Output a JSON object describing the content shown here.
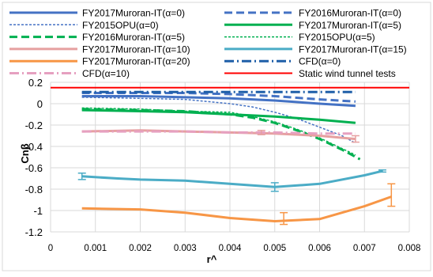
{
  "chart_data": {
    "type": "line",
    "title": "",
    "xlabel": "r^",
    "ylabel": "Cnβ",
    "xlim": [
      0,
      0.008
    ],
    "ylim": [
      -1.2,
      0.2
    ],
    "xticks": [
      0,
      0.001,
      0.002,
      0.003,
      0.004,
      0.005,
      0.006,
      0.007,
      0.008
    ],
    "xtick_labels": [
      "0",
      "0.001",
      "0.002",
      "0.003",
      "0.004",
      "0.005",
      "0.006",
      "0.007",
      "0.008"
    ],
    "yticks": [
      0.2,
      0,
      -0.2,
      -0.4,
      -0.6,
      -0.8,
      -1,
      -1.2
    ],
    "ytick_labels": [
      "0.2",
      "0",
      "-0.2",
      "-0.4",
      "-0.6",
      "-0.8",
      "-1",
      "-1.2"
    ],
    "grid": true,
    "legend_position": "top",
    "series": [
      {
        "name": "FY2017Muroran-IT(α=0)",
        "color": "#4472c4",
        "dash": "",
        "width": 3,
        "x": [
          0.0007,
          0.002,
          0.003,
          0.004,
          0.005,
          0.006,
          0.0068
        ],
        "y": [
          0.07,
          0.07,
          0.06,
          0.05,
          0.03,
          0.0,
          -0.02
        ]
      },
      {
        "name": "FY2016Muroran-IT(α=0)",
        "color": "#4472c4",
        "dash": "10,5",
        "width": 3,
        "x": [
          0.0007,
          0.002,
          0.003,
          0.004,
          0.005,
          0.006,
          0.0068
        ],
        "y": [
          0.1,
          0.1,
          0.1,
          0.09,
          0.07,
          0.04,
          0.02
        ]
      },
      {
        "name": "FY2015OPU(α=0)",
        "color": "#4472c4",
        "dash": "3,2",
        "width": 1.5,
        "x": [
          0.0007,
          0.002,
          0.003,
          0.004,
          0.0045,
          0.005,
          0.0055,
          0.006,
          0.0065,
          0.0068
        ],
        "y": [
          0.06,
          0.05,
          0.04,
          0.0,
          -0.03,
          -0.08,
          -0.14,
          -0.22,
          -0.3,
          -0.37
        ]
      },
      {
        "name": "FY2017Muroran-IT(α=5)",
        "color": "#00b050",
        "dash": "",
        "width": 3,
        "x": [
          0.0007,
          0.002,
          0.003,
          0.004,
          0.005,
          0.006,
          0.0068
        ],
        "y": [
          -0.06,
          -0.07,
          -0.08,
          -0.1,
          -0.12,
          -0.15,
          -0.18
        ]
      },
      {
        "name": "FY2016Muroran-IT(α=5)",
        "color": "#00b050",
        "dash": "10,5",
        "width": 3,
        "x": [
          0.0007,
          0.002,
          0.003,
          0.004,
          0.0045,
          0.005,
          0.0055,
          0.006,
          0.0065,
          0.0069
        ],
        "y": [
          -0.05,
          -0.06,
          -0.07,
          -0.1,
          -0.13,
          -0.18,
          -0.25,
          -0.33,
          -0.43,
          -0.52
        ]
      },
      {
        "name": "FY2015OPU(α=5)",
        "color": "#00b050",
        "dash": "3,2",
        "width": 1.5,
        "x": [
          0.0007,
          0.002,
          0.003,
          0.004,
          0.0045,
          0.005,
          0.0055,
          0.006,
          0.0065,
          0.0068
        ],
        "y": [
          -0.04,
          -0.05,
          -0.07,
          -0.08,
          -0.12,
          -0.17,
          -0.24,
          -0.32,
          -0.42,
          -0.48
        ]
      },
      {
        "name": "FY2017Muroran-IT(α=10)",
        "color": "#e6a0a0",
        "dash": "",
        "width": 3,
        "x": [
          0.0007,
          0.002,
          0.003,
          0.004,
          0.005,
          0.006,
          0.0068
        ],
        "y": [
          -0.26,
          -0.25,
          -0.26,
          -0.27,
          -0.28,
          -0.3,
          -0.33
        ]
      },
      {
        "name": "FY2017Muroran-IT(α=15)",
        "color": "#4bacc6",
        "dash": "",
        "width": 3,
        "x": [
          0.0007,
          0.0015,
          0.002,
          0.003,
          0.004,
          0.005,
          0.006,
          0.007,
          0.0074
        ],
        "y": [
          -0.68,
          -0.7,
          -0.71,
          -0.72,
          -0.75,
          -0.78,
          -0.75,
          -0.67,
          -0.63
        ]
      },
      {
        "name": "FY2017Muroran-IT(α=20)",
        "color": "#f79646",
        "dash": "",
        "width": 3,
        "x": [
          0.0007,
          0.002,
          0.003,
          0.004,
          0.005,
          0.006,
          0.007,
          0.0076
        ],
        "y": [
          -0.98,
          -0.99,
          -1.02,
          -1.07,
          -1.1,
          -1.08,
          -0.96,
          -0.87
        ]
      },
      {
        "name": "CFD(α=0)",
        "color": "#1f5fa8",
        "dash": "12,4,2,4",
        "width": 3,
        "x": [
          0.0007,
          0.002,
          0.003,
          0.004,
          0.005,
          0.006,
          0.0068
        ],
        "y": [
          0.11,
          0.11,
          0.11,
          0.11,
          0.11,
          0.11,
          0.11
        ]
      },
      {
        "name": "CFD(α=10)",
        "color": "#e6a0c0",
        "dash": "12,4,2,4",
        "width": 3,
        "x": [
          0.0007,
          0.002,
          0.003,
          0.004,
          0.005,
          0.006,
          0.0068
        ],
        "y": [
          -0.26,
          -0.26,
          -0.26,
          -0.27,
          -0.27,
          -0.28,
          -0.28
        ]
      },
      {
        "name": "Static wind tunnel tests",
        "color": "#ff0000",
        "dash": "",
        "width": 2,
        "x": [
          0,
          0.008
        ],
        "y": [
          0.15,
          0.15
        ]
      }
    ],
    "error_bars": [
      {
        "color": "#4bacc6",
        "x": 0.0007,
        "y": -0.68,
        "low": -0.71,
        "high": -0.65
      },
      {
        "color": "#4bacc6",
        "x": 0.005,
        "y": -0.78,
        "low": -0.82,
        "high": -0.74
      },
      {
        "color": "#4bacc6",
        "x": 0.0074,
        "y": -0.63,
        "low": -0.64,
        "high": -0.62
      },
      {
        "color": "#f79646",
        "x": 0.0052,
        "y": -1.1,
        "low": -1.13,
        "high": -1.02
      },
      {
        "color": "#f79646",
        "x": 0.0076,
        "y": -0.87,
        "low": -0.96,
        "high": -0.75
      },
      {
        "color": "#e6a0a0",
        "x": 0.0068,
        "y": -0.33,
        "low": -0.36,
        "high": -0.3
      },
      {
        "color": "#e6a0a0",
        "x": 0.0047,
        "y": -0.27,
        "low": -0.29,
        "high": -0.25
      }
    ]
  }
}
